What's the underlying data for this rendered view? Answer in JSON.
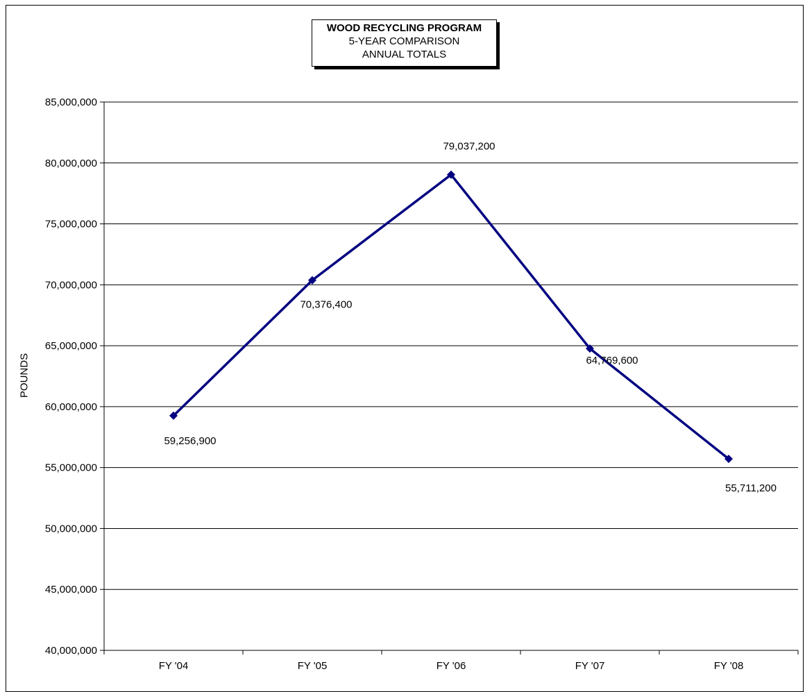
{
  "chart_data": {
    "type": "line",
    "title": "WOOD RECYCLING PROGRAM",
    "subtitle_lines": [
      "5-YEAR COMPARISON",
      "ANNUAL TOTALS"
    ],
    "xlabel": "",
    "ylabel": "POUNDS",
    "categories": [
      "FY '04",
      "FY '05",
      "FY '06",
      "FY '07",
      "FY '08"
    ],
    "series": [
      {
        "values": [
          59256900,
          70376400,
          79037200,
          64769600,
          55711200
        ],
        "data_labels": [
          "59,256,900",
          "70,376,400",
          "79,037,200",
          "64,769,600",
          "55,711,200"
        ],
        "color": "#000080"
      }
    ],
    "ylim": [
      40000000,
      85000000
    ],
    "y_ticks": [
      40000000,
      45000000,
      50000000,
      55000000,
      60000000,
      65000000,
      70000000,
      75000000,
      80000000,
      85000000
    ],
    "y_tick_labels": [
      "40,000,000",
      "45,000,000",
      "50,000,000",
      "55,000,000",
      "60,000,000",
      "65,000,000",
      "70,000,000",
      "75,000,000",
      "80,000,000",
      "85,000,000"
    ],
    "grid": true,
    "legend": "none"
  }
}
